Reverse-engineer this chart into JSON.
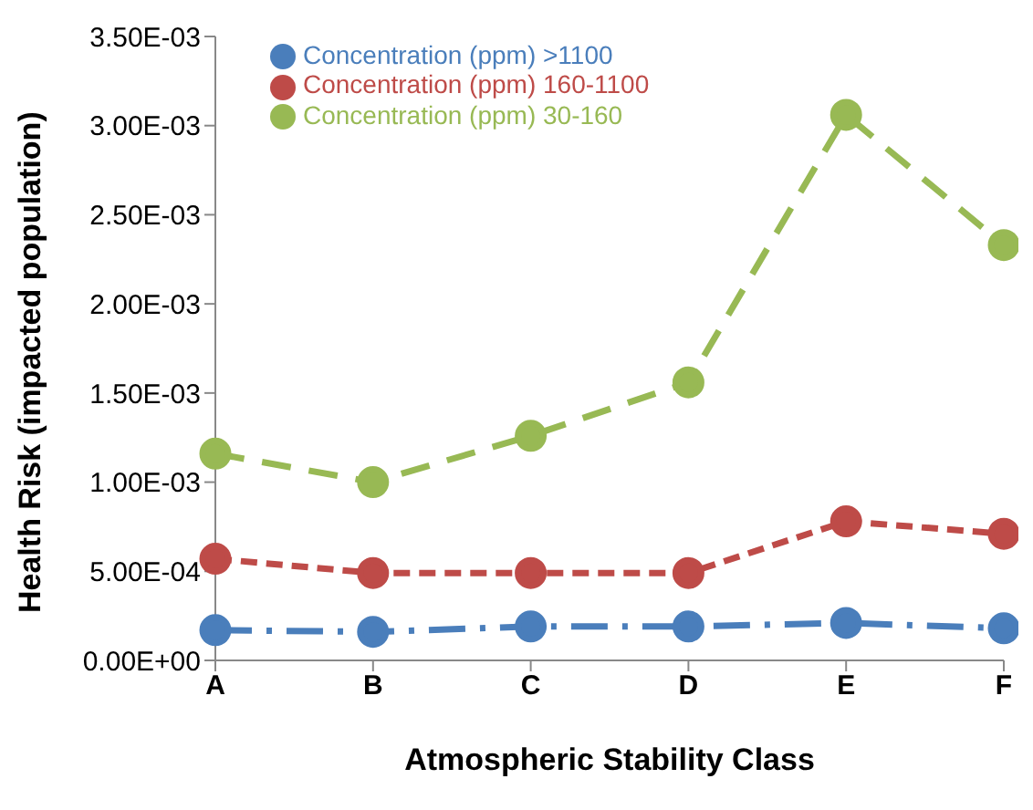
{
  "chart_data": {
    "type": "line",
    "xlabel": "Atmospheric Stability Class",
    "ylabel": "Health Risk (impacted population)",
    "categories": [
      "A",
      "B",
      "C",
      "D",
      "E",
      "F"
    ],
    "series": [
      {
        "name": "Concentration (ppm) >1100",
        "color": "#4a7ebb",
        "values": [
          0.00017,
          0.00016,
          0.00019,
          0.00019,
          0.00021,
          0.00018
        ],
        "line_style": "dashed"
      },
      {
        "name": "Concentration (ppm) 160-1100",
        "color": "#be4b48",
        "values": [
          0.00057,
          0.00049,
          0.00049,
          0.00049,
          0.00078,
          0.00071
        ],
        "line_style": "dashed"
      },
      {
        "name": "Concentration (ppm) 30-160",
        "color": "#98b954",
        "values": [
          0.00116,
          0.001,
          0.00126,
          0.00156,
          0.00306,
          0.00233
        ],
        "line_style": "dashed"
      }
    ],
    "ylim": [
      0,
      0.0035
    ],
    "yticks": [
      {
        "value": 0,
        "label": "0.00E+00"
      },
      {
        "value": 0.0005,
        "label": "5.00E-04"
      },
      {
        "value": 0.001,
        "label": "1.00E-03"
      },
      {
        "value": 0.0015,
        "label": "1.50E-03"
      },
      {
        "value": 0.002,
        "label": "2.00E-03"
      },
      {
        "value": 0.0025,
        "label": "2.50E-03"
      },
      {
        "value": 0.003,
        "label": "3.00E-03"
      },
      {
        "value": 0.0035,
        "label": "3.50E-03"
      }
    ],
    "grid": false,
    "legend": "top left",
    "marker": "circle"
  }
}
